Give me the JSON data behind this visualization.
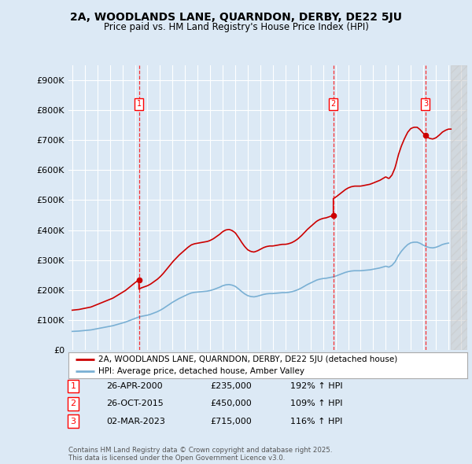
{
  "title_line1": "2A, WOODLANDS LANE, QUARNDON, DERBY, DE22 5JU",
  "title_line2": "Price paid vs. HM Land Registry's House Price Index (HPI)",
  "bg_color": "#dce9f5",
  "red_line_color": "#cc0000",
  "blue_line_color": "#7ab0d4",
  "ylim": [
    0,
    950000
  ],
  "yticks": [
    0,
    100000,
    200000,
    300000,
    400000,
    500000,
    600000,
    700000,
    800000,
    900000
  ],
  "ytick_labels": [
    "£0",
    "£100K",
    "£200K",
    "£300K",
    "£400K",
    "£500K",
    "£600K",
    "£700K",
    "£800K",
    "£900K"
  ],
  "xlim_start": 1994.7,
  "xlim_end": 2026.5,
  "sale_dates": [
    2000.32,
    2015.82,
    2023.17
  ],
  "sale_prices": [
    235000,
    450000,
    715000
  ],
  "sale_labels": [
    "1",
    "2",
    "3"
  ],
  "sale_date_strs": [
    "26-APR-2000",
    "26-OCT-2015",
    "02-MAR-2023"
  ],
  "sale_prices_str": [
    "£235,000",
    "£450,000",
    "£715,000"
  ],
  "sale_pct": [
    "192% ↑ HPI",
    "109% ↑ HPI",
    "116% ↑ HPI"
  ],
  "legend_label_red": "2A, WOODLANDS LANE, QUARNDON, DERBY, DE22 5JU (detached house)",
  "legend_label_blue": "HPI: Average price, detached house, Amber Valley",
  "footer_text": "Contains HM Land Registry data © Crown copyright and database right 2025.\nThis data is licensed under the Open Government Licence v3.0.",
  "hpi_x": [
    1995,
    1995.25,
    1995.5,
    1995.75,
    1996,
    1996.25,
    1996.5,
    1996.75,
    1997,
    1997.25,
    1997.5,
    1997.75,
    1998,
    1998.25,
    1998.5,
    1998.75,
    1999,
    1999.25,
    1999.5,
    1999.75,
    2000,
    2000.25,
    2000.5,
    2000.75,
    2001,
    2001.25,
    2001.5,
    2001.75,
    2002,
    2002.25,
    2002.5,
    2002.75,
    2003,
    2003.25,
    2003.5,
    2003.75,
    2004,
    2004.25,
    2004.5,
    2004.75,
    2005,
    2005.25,
    2005.5,
    2005.75,
    2006,
    2006.25,
    2006.5,
    2006.75,
    2007,
    2007.25,
    2007.5,
    2007.75,
    2008,
    2008.25,
    2008.5,
    2008.75,
    2009,
    2009.25,
    2009.5,
    2009.75,
    2010,
    2010.25,
    2010.5,
    2010.75,
    2011,
    2011.25,
    2011.5,
    2011.75,
    2012,
    2012.25,
    2012.5,
    2012.75,
    2013,
    2013.25,
    2013.5,
    2013.75,
    2014,
    2014.25,
    2014.5,
    2014.75,
    2015,
    2015.25,
    2015.5,
    2015.75,
    2016,
    2016.25,
    2016.5,
    2016.75,
    2017,
    2017.25,
    2017.5,
    2017.75,
    2018,
    2018.25,
    2018.5,
    2018.75,
    2019,
    2019.25,
    2019.5,
    2019.75,
    2020,
    2020.25,
    2020.5,
    2020.75,
    2021,
    2021.25,
    2021.5,
    2021.75,
    2022,
    2022.25,
    2022.5,
    2022.75,
    2023,
    2023.25,
    2023.5,
    2023.75,
    2024,
    2024.25,
    2024.5,
    2024.75,
    2025
  ],
  "hpi_y": [
    63000,
    63500,
    64000,
    65000,
    66000,
    67000,
    68000,
    70000,
    72000,
    74000,
    76000,
    78000,
    80000,
    82000,
    85000,
    88000,
    91000,
    94000,
    98000,
    102000,
    106000,
    110000,
    113000,
    115000,
    117000,
    120000,
    124000,
    128000,
    133000,
    139000,
    146000,
    153000,
    160000,
    166000,
    172000,
    177000,
    182000,
    187000,
    191000,
    193000,
    194000,
    195000,
    196000,
    197000,
    199000,
    202000,
    206000,
    210000,
    215000,
    218000,
    219000,
    217000,
    213000,
    205000,
    196000,
    188000,
    182000,
    179000,
    178000,
    180000,
    183000,
    186000,
    188000,
    189000,
    189000,
    190000,
    191000,
    192000,
    192000,
    193000,
    195000,
    198000,
    202000,
    207000,
    213000,
    219000,
    224000,
    229000,
    234000,
    237000,
    239000,
    240000,
    242000,
    244000,
    247000,
    251000,
    255000,
    259000,
    262000,
    264000,
    265000,
    265000,
    265000,
    266000,
    267000,
    268000,
    270000,
    272000,
    274000,
    277000,
    280000,
    277000,
    283000,
    295000,
    315000,
    330000,
    342000,
    352000,
    358000,
    360000,
    360000,
    356000,
    350000,
    345000,
    342000,
    341000,
    343000,
    347000,
    352000,
    355000,
    357000
  ]
}
